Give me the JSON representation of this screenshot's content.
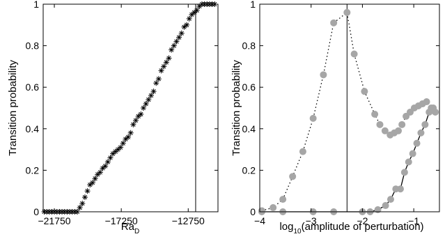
{
  "chart_data": [
    {
      "type": "scatter",
      "xlabel": "Ra",
      "xlabel_sub": "D",
      "ylabel": "Transition probability",
      "xlim": [
        -22500,
        -10750
      ],
      "ylim": [
        0,
        1
      ],
      "xticks": [
        -21750,
        -17250,
        -12750
      ],
      "xtick_labels": [
        "−21750",
        "−17250",
        "−12750"
      ],
      "yticks": [
        0,
        0.2,
        0.4,
        0.6,
        0.8,
        1
      ],
      "ytick_labels": [
        "0",
        "0.2",
        "0.4",
        "0.6",
        "0.8",
        "1"
      ],
      "grid": false,
      "vline": -12250,
      "series": [
        {
          "marker": "asterisk",
          "color": "#000000",
          "x": [
            -22430,
            -22259,
            -22088,
            -21917,
            -21746,
            -21575,
            -21404,
            -21233,
            -21062,
            -20891,
            -20720,
            -20549,
            -20378,
            -20207,
            -20036,
            -19865,
            -19694,
            -19523,
            -19352,
            -19181,
            -19010,
            -18839,
            -18668,
            -18497,
            -18326,
            -18155,
            -17984,
            -17813,
            -17642,
            -17471,
            -17300,
            -17129,
            -16958,
            -16787,
            -16616,
            -16445,
            -16274,
            -16103,
            -15932,
            -15761,
            -15590,
            -15419,
            -15248,
            -15077,
            -14906,
            -14735,
            -14564,
            -14393,
            -14222,
            -14051,
            -13880,
            -13709,
            -13538,
            -13367,
            -13196,
            -13025,
            -12854,
            -12683,
            -12512,
            -12341,
            -12170,
            -11999,
            -11828,
            -11657,
            -11486,
            -11315,
            -11144,
            -10973
          ],
          "y": [
            0,
            0,
            0,
            0,
            0,
            0,
            0,
            0,
            0,
            0,
            0,
            0,
            0,
            0,
            0.02,
            0.04,
            0.07,
            0.1,
            0.13,
            0.14,
            0.16,
            0.18,
            0.19,
            0.21,
            0.22,
            0.24,
            0.26,
            0.28,
            0.29,
            0.3,
            0.31,
            0.33,
            0.35,
            0.36,
            0.38,
            0.42,
            0.44,
            0.46,
            0.47,
            0.5,
            0.52,
            0.54,
            0.56,
            0.58,
            0.62,
            0.64,
            0.68,
            0.7,
            0.72,
            0.74,
            0.78,
            0.8,
            0.82,
            0.84,
            0.86,
            0.89,
            0.9,
            0.93,
            0.95,
            0.96,
            0.97,
            0.99,
            1,
            1,
            1,
            1,
            1,
            1
          ]
        }
      ]
    },
    {
      "type": "line",
      "xlabel_pre": "log",
      "xlabel_sub": "10",
      "xlabel": "(amplitude of perturbation)",
      "ylabel": "Transition probability",
      "xlim": [
        -4,
        -0.5
      ],
      "ylim": [
        0,
        1
      ],
      "xticks": [
        -4,
        -3,
        -2,
        -1
      ],
      "xtick_labels": [
        "−4",
        "−3",
        "−2",
        "−1"
      ],
      "yticks": [
        0,
        0.2,
        0.4,
        0.6,
        0.8,
        1
      ],
      "ytick_labels": [
        "0",
        "0.2",
        "0.4",
        "0.6",
        "0.8",
        "1"
      ],
      "grid": false,
      "vline": -2.3,
      "series": [
        {
          "line": "dotted",
          "color": "#000000",
          "marker_color": "#a6a6a6",
          "x": [
            -3.96,
            -3.74,
            -3.55,
            -3.36,
            -3.16,
            -2.96,
            -2.76,
            -2.56,
            -2.3,
            -2.16,
            -1.96,
            -1.76,
            -1.66,
            -1.56,
            -1.46,
            -1.38,
            -1.3,
            -1.23,
            -1.15,
            -1.07,
            -0.99,
            -0.91,
            -0.83,
            -0.75,
            -0.66,
            -0.58
          ],
          "y": [
            0.005,
            0.02,
            0.06,
            0.17,
            0.29,
            0.45,
            0.66,
            0.91,
            0.96,
            0.76,
            0.58,
            0.47,
            0.42,
            0.39,
            0.37,
            0.38,
            0.39,
            0.42,
            0.46,
            0.48,
            0.5,
            0.51,
            0.52,
            0.53,
            0.5,
            0.48
          ]
        },
        {
          "line": "solid",
          "color": "#000000",
          "marker_color": "#a6a6a6",
          "x": [
            -3.96,
            -3.55,
            -2.96,
            -2.56,
            -2.0,
            -1.85,
            -1.7,
            -1.55,
            -1.45,
            -1.35,
            -1.26,
            -1.18,
            -1.1,
            -1.02,
            -0.94,
            -0.86,
            -0.78,
            -0.7,
            -0.62
          ],
          "y": [
            0,
            0,
            0,
            0,
            0,
            0,
            0.01,
            0.03,
            0.06,
            0.11,
            0.11,
            0.19,
            0.24,
            0.28,
            0.33,
            0.38,
            0.42,
            0.48,
            0.5
          ]
        }
      ]
    }
  ]
}
